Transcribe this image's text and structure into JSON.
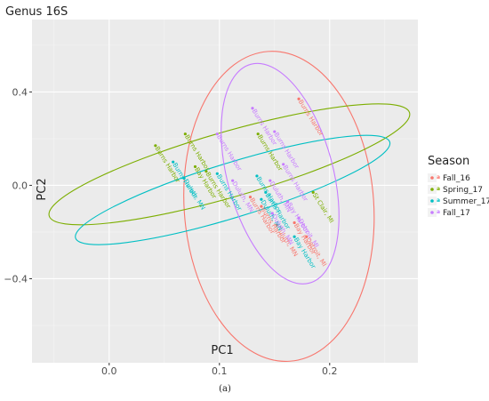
{
  "chart_data": {
    "type": "scatter",
    "title": "Genus 16S",
    "xlabel": "PC1",
    "ylabel": "PC2",
    "xlim": [
      -0.07,
      0.28
    ],
    "ylim": [
      -0.76,
      0.71
    ],
    "x_ticks": [
      0.0,
      0.1,
      0.2
    ],
    "y_ticks": [
      -0.4,
      0.0,
      0.4
    ],
    "x_tick_labels": [
      "0.0",
      "0.1",
      "0.2"
    ],
    "y_tick_labels": [
      "−0.4",
      "0.0",
      "0.4"
    ],
    "grid": true,
    "legend_title": "Season",
    "legend_position": "right",
    "caption": "(a)",
    "series": [
      {
        "name": "Fall_16",
        "color": "#F8766D",
        "points": [
          {
            "x": 0.172,
            "y": 0.37,
            "label": "Burns Harbor"
          },
          {
            "x": 0.179,
            "y": -0.22,
            "label": "Detroit, MI"
          },
          {
            "x": 0.168,
            "y": -0.16,
            "label": "Bay Harbor"
          },
          {
            "x": 0.152,
            "y": -0.17,
            "label": "Duluth, MN"
          },
          {
            "x": 0.138,
            "y": -0.09,
            "label": "Burns Harbor"
          },
          {
            "x": 0.128,
            "y": -0.05,
            "label": "Burns Harbor"
          }
        ],
        "ellipse": {
          "cx": 0.154,
          "cy": -0.09,
          "rx": 0.086,
          "ry": 0.665,
          "angle": -4
        }
      },
      {
        "name": "Spring_17",
        "color": "#7CAE00",
        "points": [
          {
            "x": 0.042,
            "y": 0.17,
            "label": "Burns Harbor"
          },
          {
            "x": 0.069,
            "y": 0.22,
            "label": "Burns Harbor"
          },
          {
            "x": 0.078,
            "y": 0.08,
            "label": "Bay Harbor"
          },
          {
            "x": 0.088,
            "y": 0.06,
            "label": "Burns Harbor"
          },
          {
            "x": 0.135,
            "y": 0.22,
            "label": "Burns Harbor"
          },
          {
            "x": 0.185,
            "y": -0.03,
            "label": "St Clair, MI"
          }
        ],
        "ellipse": {
          "cx": 0.109,
          "cy": 0.09,
          "rx": 0.17,
          "ry": 0.14,
          "angle": -16
        }
      },
      {
        "name": "Summer_17",
        "color": "#00BFC4",
        "points": [
          {
            "x": 0.058,
            "y": 0.1,
            "label": "Burns Harbor"
          },
          {
            "x": 0.068,
            "y": 0.03,
            "label": "Duluth, MN"
          },
          {
            "x": 0.098,
            "y": 0.05,
            "label": "Burns Harbor"
          },
          {
            "x": 0.134,
            "y": 0.04,
            "label": "Burns Harbor"
          },
          {
            "x": 0.138,
            "y": -0.06,
            "label": "Duluth, MN"
          },
          {
            "x": 0.142,
            "y": -0.03,
            "label": "Burns Harbor"
          },
          {
            "x": 0.168,
            "y": -0.22,
            "label": "Bay Harbor"
          }
        ],
        "ellipse": {
          "cx": 0.112,
          "cy": -0.02,
          "rx": 0.149,
          "ry": 0.117,
          "angle": -17
        }
      },
      {
        "name": "Fall_17",
        "color": "#C77CFF",
        "points": [
          {
            "x": 0.13,
            "y": 0.33,
            "label": "Burns Harbor"
          },
          {
            "x": 0.098,
            "y": 0.22,
            "label": "Burns Harbor"
          },
          {
            "x": 0.15,
            "y": 0.23,
            "label": "Burns Harbor"
          },
          {
            "x": 0.158,
            "y": 0.09,
            "label": "Burns Harbor"
          },
          {
            "x": 0.112,
            "y": 0.02,
            "label": "Duluth, MN"
          },
          {
            "x": 0.146,
            "y": 0.02,
            "label": "Duluth, MN"
          },
          {
            "x": 0.162,
            "y": -0.07,
            "label": "Bay Harbor"
          },
          {
            "x": 0.148,
            "y": -0.12,
            "label": "Duluth, MN"
          },
          {
            "x": 0.172,
            "y": -0.14,
            "label": "Detroit, MI"
          }
        ],
        "ellipse": {
          "cx": 0.155,
          "cy": 0.05,
          "rx": 0.048,
          "ry": 0.485,
          "angle": -15
        }
      }
    ]
  }
}
